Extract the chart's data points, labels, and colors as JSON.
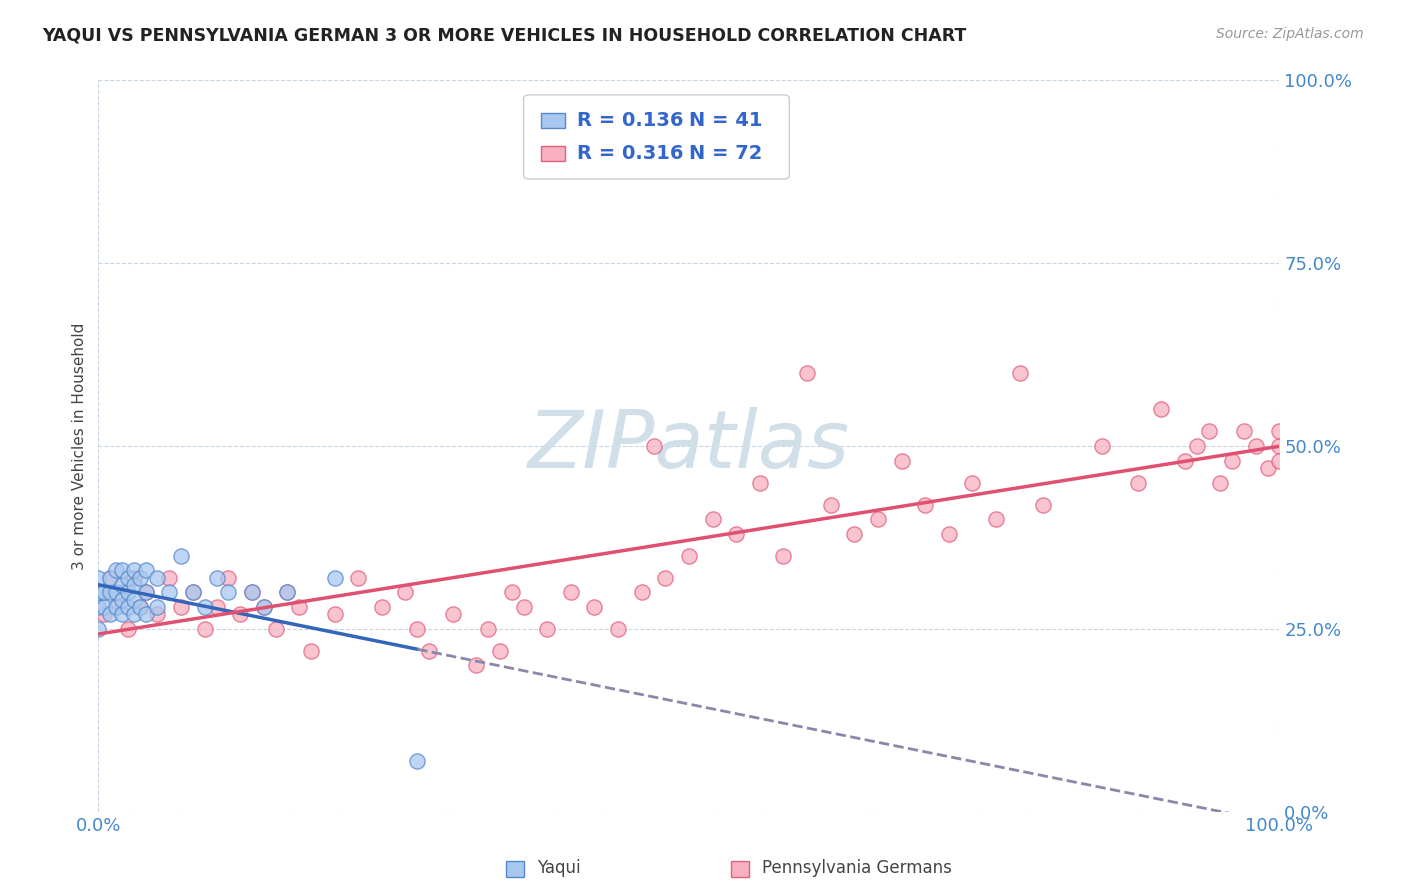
{
  "title": "YAQUI VS PENNSYLVANIA GERMAN 3 OR MORE VEHICLES IN HOUSEHOLD CORRELATION CHART",
  "source": "Source: ZipAtlas.com",
  "ylabel": "3 or more Vehicles in Household",
  "xlim": [
    0,
    1.0
  ],
  "ylim": [
    0,
    1.0
  ],
  "xtick_labels": [
    "0.0%",
    "100.0%"
  ],
  "ytick_labels": [
    "0.0%",
    "25.0%",
    "50.0%",
    "75.0%",
    "100.0%"
  ],
  "ytick_values": [
    0.0,
    0.25,
    0.5,
    0.75,
    1.0
  ],
  "legend_label1": "Yaqui",
  "legend_label2": "Pennsylvania Germans",
  "R1": 0.136,
  "N1": 41,
  "R2": 0.316,
  "N2": 72,
  "yaqui_x": [
    0.0,
    0.0,
    0.0,
    0.0,
    0.005,
    0.005,
    0.01,
    0.01,
    0.01,
    0.015,
    0.015,
    0.015,
    0.02,
    0.02,
    0.02,
    0.02,
    0.025,
    0.025,
    0.025,
    0.03,
    0.03,
    0.03,
    0.03,
    0.035,
    0.035,
    0.04,
    0.04,
    0.04,
    0.05,
    0.05,
    0.06,
    0.07,
    0.08,
    0.09,
    0.1,
    0.11,
    0.13,
    0.14,
    0.16,
    0.2,
    0.27
  ],
  "yaqui_y": [
    0.25,
    0.28,
    0.3,
    0.32,
    0.28,
    0.3,
    0.27,
    0.3,
    0.32,
    0.28,
    0.3,
    0.33,
    0.27,
    0.29,
    0.31,
    0.33,
    0.28,
    0.3,
    0.32,
    0.27,
    0.29,
    0.31,
    0.33,
    0.28,
    0.32,
    0.27,
    0.3,
    0.33,
    0.28,
    0.32,
    0.3,
    0.35,
    0.3,
    0.28,
    0.32,
    0.3,
    0.3,
    0.28,
    0.3,
    0.32,
    0.07
  ],
  "pagerman_x": [
    0.0,
    0.005,
    0.01,
    0.015,
    0.02,
    0.025,
    0.03,
    0.035,
    0.04,
    0.05,
    0.06,
    0.07,
    0.08,
    0.09,
    0.1,
    0.11,
    0.12,
    0.13,
    0.14,
    0.15,
    0.16,
    0.17,
    0.18,
    0.2,
    0.22,
    0.24,
    0.26,
    0.27,
    0.28,
    0.3,
    0.32,
    0.33,
    0.34,
    0.35,
    0.36,
    0.38,
    0.4,
    0.42,
    0.44,
    0.46,
    0.47,
    0.48,
    0.5,
    0.52,
    0.54,
    0.56,
    0.58,
    0.6,
    0.62,
    0.64,
    0.66,
    0.68,
    0.7,
    0.72,
    0.74,
    0.76,
    0.78,
    0.8,
    0.85,
    0.88,
    0.9,
    0.92,
    0.93,
    0.94,
    0.95,
    0.96,
    0.97,
    0.98,
    0.99,
    1.0,
    1.0,
    1.0
  ],
  "pagerman_y": [
    0.3,
    0.27,
    0.32,
    0.28,
    0.3,
    0.25,
    0.32,
    0.28,
    0.3,
    0.27,
    0.32,
    0.28,
    0.3,
    0.25,
    0.28,
    0.32,
    0.27,
    0.3,
    0.28,
    0.25,
    0.3,
    0.28,
    0.22,
    0.27,
    0.32,
    0.28,
    0.3,
    0.25,
    0.22,
    0.27,
    0.2,
    0.25,
    0.22,
    0.3,
    0.28,
    0.25,
    0.3,
    0.28,
    0.25,
    0.3,
    0.5,
    0.32,
    0.35,
    0.4,
    0.38,
    0.45,
    0.35,
    0.6,
    0.42,
    0.38,
    0.4,
    0.48,
    0.42,
    0.38,
    0.45,
    0.4,
    0.6,
    0.42,
    0.5,
    0.45,
    0.55,
    0.48,
    0.5,
    0.52,
    0.45,
    0.48,
    0.52,
    0.5,
    0.47,
    0.5,
    0.52,
    0.48
  ],
  "yaqui_color": "#a8c8f0",
  "yaqui_edge_color": "#5588cc",
  "pagerman_color": "#f8b0c0",
  "pagerman_edge_color": "#e06080",
  "yaqui_line_color": "#3366bb",
  "pagerman_line_color": "#e05070",
  "background_color": "#ffffff",
  "watermark_color": "#d0dfe8"
}
